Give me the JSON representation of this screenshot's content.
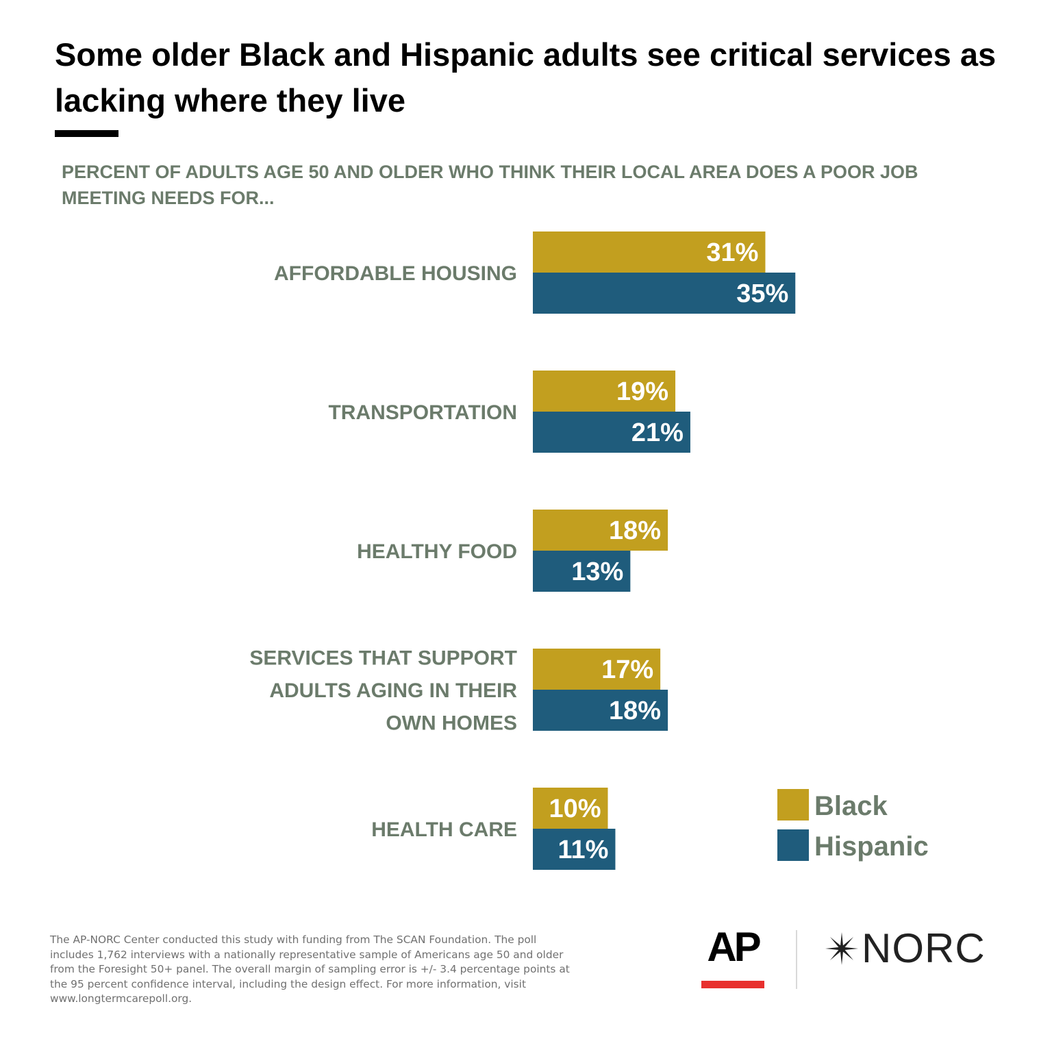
{
  "title": "Some older Black and Hispanic adults see critical services as lacking where they live",
  "subtitle": "PERCENT OF ADULTS AGE 50 AND OLDER WHO THINK THEIR LOCAL AREA DOES A POOR JOB MEETING NEEDS FOR...",
  "footnote": "The AP-NORC Center conducted this study with funding from The SCAN Foundation. The poll includes 1,762 interviews with a nationally representative sample of Americans age 50 and older from the Foresight 50+ panel. The overall margin of sampling error is +/- 3.4 percentage points at the 95 percent confidence interval, including the design effect. For more information, visit www.longtermcarepoll.org.",
  "logos": {
    "ap": "AP",
    "norc": "NORC"
  },
  "colors": {
    "black_series": "#c29f1f",
    "hispanic_series": "#1f5c7c",
    "label_text": "#6b7b6b",
    "ap_red": "#e8302e"
  },
  "chart_data": {
    "type": "bar",
    "orientation": "horizontal",
    "categories": [
      [
        "AFFORDABLE HOUSING"
      ],
      [
        "TRANSPORTATION"
      ],
      [
        "HEALTHY FOOD"
      ],
      [
        "SERVICES THAT SUPPORT",
        "ADULTS AGING IN THEIR",
        "OWN HOMES"
      ],
      [
        "HEALTH CARE"
      ]
    ],
    "series": [
      {
        "name": "Black",
        "values": [
          31,
          19,
          18,
          17,
          10
        ],
        "color": "#c29f1f"
      },
      {
        "name": "Hispanic",
        "values": [
          35,
          21,
          13,
          18,
          11
        ],
        "color": "#1f5c7c"
      }
    ],
    "value_format": "{v}%",
    "legend": [
      "Black",
      "Hispanic"
    ],
    "legend_position": "bottom-right",
    "grid": false,
    "xlim": [
      0,
      35
    ]
  }
}
